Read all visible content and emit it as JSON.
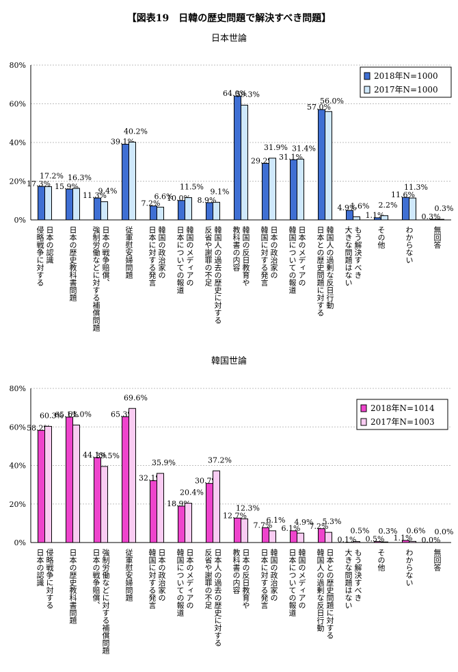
{
  "title": "【図表19　日韓の歴史問題で解決すべき問題】",
  "chart_data": [
    {
      "type": "bar",
      "title": "日本世論",
      "ylim": [
        0,
        80
      ],
      "yticks": [
        "0%",
        "20%",
        "40%",
        "60%",
        "80%"
      ],
      "legend_position": "top-right",
      "categories": [
        "日本の認識\n侵略戦争に対する",
        "日本の歴史教科書問題",
        "日本の戦争賠償、\n強制労働などに対する補償問題",
        "従軍慰安婦問題",
        "韓国の政治家の\n日本に対する発言",
        "韓国のメディアの\n日本についての報道",
        "韓国人の過去の歴史に対する\n反省や謝罪の不足",
        "韓国の反日教育や\n教科書の内容",
        "日本の政治家の\n韓国に対する発言",
        "日本のメディアの\n韓国についての報道",
        "韓国人の過剰な反日行動\n日本との歴史問題に対する",
        "もう解決すべき\n大きな問題はない",
        "その他",
        "わからない",
        "無回答"
      ],
      "series": [
        {
          "name": "2018年N=1000",
          "color": "#3f6fd3",
          "values": [
            17.3,
            15.9,
            11.3,
            39.1,
            7.2,
            10.0,
            8.9,
            64.0,
            29.2,
            31.1,
            57.0,
            4.9,
            1.1,
            11.6,
            0.3
          ],
          "labels": [
            "17.3%",
            "15.9%",
            "11.3%",
            "39.1%",
            "7.2%",
            "10.0%",
            "8.9%",
            "64.0%",
            "29.2%",
            "31.1%",
            "57.0%",
            "4.9%",
            "1.1%",
            "11.6%",
            "0.3%"
          ]
        },
        {
          "name": "2017年N=1000",
          "color": "#cfe8fb",
          "values": [
            17.2,
            16.3,
            9.4,
            40.2,
            6.6,
            11.5,
            9.1,
            59.3,
            31.9,
            31.4,
            56.0,
            1.6,
            2.2,
            11.3,
            0.3
          ],
          "labels": [
            "17.2%",
            "16.3%",
            "9.4%",
            "40.2%",
            "6.6%",
            "11.5%",
            "9.1%",
            "59.3%",
            "31.9%",
            "31.4%",
            "56.0%",
            "1.6%",
            "2.2%",
            "11.3%",
            "0.3%"
          ]
        }
      ]
    },
    {
      "type": "bar",
      "title": "韓国世論",
      "ylim": [
        0,
        80
      ],
      "yticks": [
        "0%",
        "20%",
        "40%",
        "60%",
        "80%"
      ],
      "legend_position": "top-right",
      "categories": [
        "侵略戦争に対する\n日本の認識",
        "日本の歴史教科書問題",
        "強制労働などに対する補償問題\n日本の戦争賠償、",
        "従軍慰安婦問題",
        "日本の政治家の\n韓国に対する発言",
        "日本のメディアの\n韓国についての報道",
        "日本人の過去の歴史に対する\n反省や謝罪の不足",
        "日本の反日教育や\n教科書の内容",
        "韓国の政治家の\n日本に対する発言",
        "韓国のメディアの\n日本についての報道",
        "日本との歴史問題に対する\n韓国人の過剰な反日行動",
        "もう解決すべき\n大きな問題はない",
        "その他",
        "わからない",
        "無回答"
      ],
      "series": [
        {
          "name": "2018年N=1014",
          "color": "#ee44cc",
          "values": [
            58.2,
            65.1,
            44.1,
            65.3,
            32.1,
            18.9,
            30.7,
            12.7,
            7.7,
            6.1,
            7.2,
            0.1,
            0.5,
            1.1,
            0.0
          ],
          "labels": [
            "58.2%",
            "65.1%",
            "44.1%",
            "65.3%",
            "32.1%",
            "18.9%",
            "30.7%",
            "12.7%",
            "7.7%",
            "6.1%",
            "7.2%",
            "0.1%",
            "0.5%",
            "1.1%",
            "0.0%"
          ]
        },
        {
          "name": "2017年N=1003",
          "color": "#f9ccf2",
          "values": [
            60.3,
            61.0,
            39.5,
            69.6,
            35.9,
            20.4,
            37.2,
            12.3,
            6.1,
            4.9,
            5.3,
            0.5,
            0.3,
            0.6,
            0.0
          ],
          "labels": [
            "60.3%",
            "61.0%",
            "39.5%",
            "69.6%",
            "35.9%",
            "20.4%",
            "37.2%",
            "12.3%",
            "6.1%",
            "4.9%",
            "5.3%",
            "0.5%",
            "0.3%",
            "0.6%",
            "0.0%"
          ]
        }
      ]
    }
  ]
}
